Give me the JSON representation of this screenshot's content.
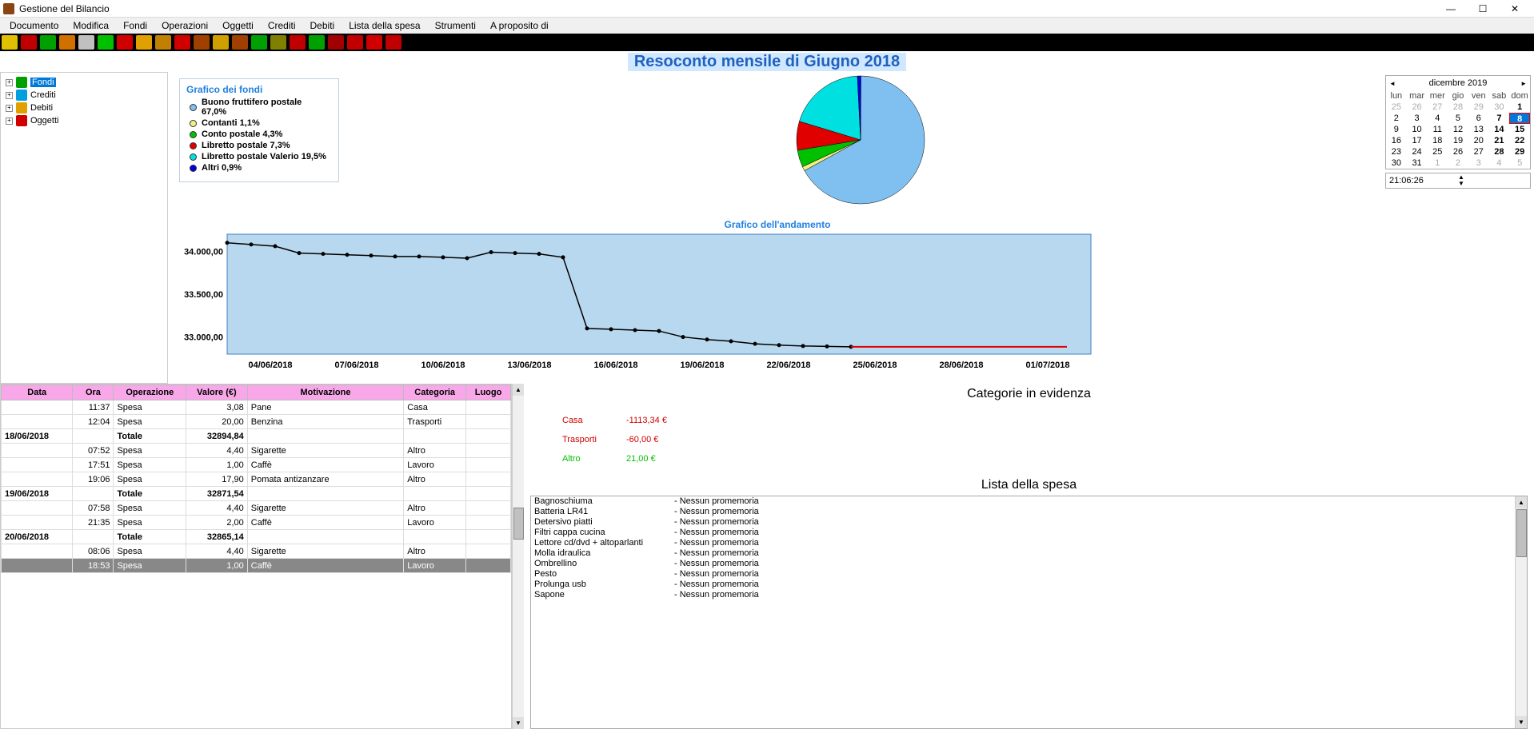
{
  "window": {
    "title": "Gestione del Bilancio"
  },
  "menu": [
    "Documento",
    "Modifica",
    "Fondi",
    "Operazioni",
    "Oggetti",
    "Crediti",
    "Debiti",
    "Lista della spesa",
    "Strumenti",
    "A proposito di"
  ],
  "toolbar_colors": [
    "#e0c000",
    "#c00000",
    "#00a000",
    "#d07000",
    "#c0c0c0",
    "#00c000",
    "#d00000",
    "#e0a000",
    "#c08000",
    "#d00000",
    "#a04000",
    "#d0a000",
    "#a04000",
    "#00a000",
    "#808000",
    "#c00000",
    "#00a000",
    "#a00000",
    "#c00000",
    "#d00000",
    "#c00000"
  ],
  "report_title": "Resoconto mensile di Giugno 2018",
  "tree": [
    {
      "label": "Fondi",
      "color": "#00a000",
      "selected": true
    },
    {
      "label": "Crediti",
      "color": "#00a0e0",
      "selected": false
    },
    {
      "label": "Debiti",
      "color": "#e0a000",
      "selected": false
    },
    {
      "label": "Oggetti",
      "color": "#d00000",
      "selected": false
    }
  ],
  "pie": {
    "title": "Grafico dei fondi",
    "items": [
      {
        "label": "Buono fruttifero postale 67,0%",
        "color": "#80c0f0",
        "pct": 67.0
      },
      {
        "label": "Contanti 1,1%",
        "color": "#f0f080",
        "pct": 1.1
      },
      {
        "label": "Conto postale 4,3%",
        "color": "#00c000",
        "pct": 4.3
      },
      {
        "label": "Libretto postale 7,3%",
        "color": "#e00000",
        "pct": 7.3
      },
      {
        "label": "Libretto postale Valerio 19,5%",
        "color": "#00e0e0",
        "pct": 19.5
      },
      {
        "label": "Altri 0,9%",
        "color": "#0000e0",
        "pct": 0.9
      }
    ]
  },
  "line": {
    "title": "Grafico dell'andamento",
    "bg": "#b8d8f0",
    "ylabels": [
      "34.000,00",
      "33.500,00",
      "33.000,00"
    ],
    "xlabels": [
      "04/06/2018",
      "07/06/2018",
      "10/06/2018",
      "13/06/2018",
      "16/06/2018",
      "19/06/2018",
      "22/06/2018",
      "25/06/2018",
      "28/06/2018",
      "01/07/2018"
    ],
    "points": [
      [
        0,
        34100
      ],
      [
        30,
        34080
      ],
      [
        60,
        34060
      ],
      [
        90,
        33980
      ],
      [
        120,
        33970
      ],
      [
        150,
        33960
      ],
      [
        180,
        33950
      ],
      [
        210,
        33940
      ],
      [
        240,
        33940
      ],
      [
        270,
        33930
      ],
      [
        300,
        33920
      ],
      [
        330,
        33990
      ],
      [
        360,
        33980
      ],
      [
        390,
        33970
      ],
      [
        420,
        33930
      ],
      [
        450,
        33100
      ],
      [
        480,
        33090
      ],
      [
        510,
        33080
      ],
      [
        540,
        33070
      ],
      [
        570,
        33000
      ],
      [
        600,
        32970
      ],
      [
        630,
        32950
      ],
      [
        660,
        32920
      ],
      [
        690,
        32905
      ],
      [
        720,
        32895
      ],
      [
        750,
        32890
      ],
      [
        780,
        32885
      ]
    ],
    "ylim": [
      32800,
      34200
    ],
    "flat_end": 780
  },
  "table": {
    "headers": [
      "Data",
      "Ora",
      "Operazione",
      "Valore (€)",
      "Motivazione",
      "Categoria",
      "Luogo"
    ],
    "rows": [
      {
        "data": "",
        "ora": "11:37",
        "op": "Spesa",
        "val": "3,08",
        "mot": "Pane",
        "cat": "Casa",
        "luogo": ""
      },
      {
        "data": "",
        "ora": "12:04",
        "op": "Spesa",
        "val": "20,00",
        "mot": "Benzina",
        "cat": "Trasporti",
        "luogo": ""
      },
      {
        "data": "18/06/2018",
        "ora": "",
        "op": "Totale",
        "val": "32894,84",
        "mot": "",
        "cat": "",
        "luogo": "",
        "tot": true
      },
      {
        "data": "",
        "ora": "07:52",
        "op": "Spesa",
        "val": "4,40",
        "mot": "Sigarette",
        "cat": "Altro",
        "luogo": ""
      },
      {
        "data": "",
        "ora": "17:51",
        "op": "Spesa",
        "val": "1,00",
        "mot": "Caffè",
        "cat": "Lavoro",
        "luogo": ""
      },
      {
        "data": "",
        "ora": "19:06",
        "op": "Spesa",
        "val": "17,90",
        "mot": "Pomata antizanzare",
        "cat": "Altro",
        "luogo": ""
      },
      {
        "data": "19/06/2018",
        "ora": "",
        "op": "Totale",
        "val": "32871,54",
        "mot": "",
        "cat": "",
        "luogo": "",
        "tot": true
      },
      {
        "data": "",
        "ora": "07:58",
        "op": "Spesa",
        "val": "4,40",
        "mot": "Sigarette",
        "cat": "Altro",
        "luogo": ""
      },
      {
        "data": "",
        "ora": "21:35",
        "op": "Spesa",
        "val": "2,00",
        "mot": "Caffè",
        "cat": "Lavoro",
        "luogo": ""
      },
      {
        "data": "20/06/2018",
        "ora": "",
        "op": "Totale",
        "val": "32865,14",
        "mot": "",
        "cat": "",
        "luogo": "",
        "tot": true
      },
      {
        "data": "",
        "ora": "08:06",
        "op": "Spesa",
        "val": "4,40",
        "mot": "Sigarette",
        "cat": "Altro",
        "luogo": ""
      },
      {
        "data": "",
        "ora": "18:53",
        "op": "Spesa",
        "val": "1,00",
        "mot": "Caffè",
        "cat": "Lavoro",
        "luogo": "",
        "sel": true
      }
    ]
  },
  "categories": {
    "title": "Categorie in evidenza",
    "items": [
      {
        "name": "Casa",
        "val": "-1113,34 €",
        "cls": "red"
      },
      {
        "name": "Trasporti",
        "val": "-60,00 €",
        "cls": "red"
      },
      {
        "name": "Altro",
        "val": "21,00 €",
        "cls": "green"
      }
    ]
  },
  "shopping": {
    "title": "Lista della spesa",
    "items": [
      {
        "n": "Bagnoschiuma",
        "r": "- Nessun promemoria"
      },
      {
        "n": "Batteria LR41",
        "r": "- Nessun promemoria"
      },
      {
        "n": "Detersivo piatti",
        "r": "- Nessun promemoria"
      },
      {
        "n": "Filtri cappa cucina",
        "r": "- Nessun promemoria"
      },
      {
        "n": "Lettore cd/dvd + altoparlanti",
        "r": "- Nessun promemoria"
      },
      {
        "n": "Molla idraulica",
        "r": "- Nessun promemoria"
      },
      {
        "n": "Ombrellino",
        "r": "- Nessun promemoria"
      },
      {
        "n": "Pesto",
        "r": "- Nessun promemoria"
      },
      {
        "n": "Prolunga usb",
        "r": "- Nessun promemoria"
      },
      {
        "n": "Sapone",
        "r": "- Nessun promemoria"
      }
    ]
  },
  "calendar": {
    "month": "dicembre 2019",
    "dow": [
      "lun",
      "mar",
      "mer",
      "gio",
      "ven",
      "sab",
      "dom"
    ],
    "cells": [
      {
        "d": "25",
        "o": true
      },
      {
        "d": "26",
        "o": true
      },
      {
        "d": "27",
        "o": true
      },
      {
        "d": "28",
        "o": true
      },
      {
        "d": "29",
        "o": true
      },
      {
        "d": "30",
        "o": true
      },
      {
        "d": "1",
        "b": true
      },
      {
        "d": "2"
      },
      {
        "d": "3"
      },
      {
        "d": "4"
      },
      {
        "d": "5"
      },
      {
        "d": "6"
      },
      {
        "d": "7",
        "b": true
      },
      {
        "d": "8",
        "b": true,
        "t": true,
        "s": true
      },
      {
        "d": "9"
      },
      {
        "d": "10"
      },
      {
        "d": "11"
      },
      {
        "d": "12"
      },
      {
        "d": "13"
      },
      {
        "d": "14",
        "b": true
      },
      {
        "d": "15",
        "b": true
      },
      {
        "d": "16"
      },
      {
        "d": "17"
      },
      {
        "d": "18"
      },
      {
        "d": "19"
      },
      {
        "d": "20"
      },
      {
        "d": "21",
        "b": true
      },
      {
        "d": "22",
        "b": true
      },
      {
        "d": "23"
      },
      {
        "d": "24"
      },
      {
        "d": "25"
      },
      {
        "d": "26"
      },
      {
        "d": "27"
      },
      {
        "d": "28",
        "b": true
      },
      {
        "d": "29",
        "b": true
      },
      {
        "d": "30"
      },
      {
        "d": "31"
      },
      {
        "d": "1",
        "o": true
      },
      {
        "d": "2",
        "o": true
      },
      {
        "d": "3",
        "o": true
      },
      {
        "d": "4",
        "o": true
      },
      {
        "d": "5",
        "o": true
      }
    ]
  },
  "time": "21:06:26"
}
